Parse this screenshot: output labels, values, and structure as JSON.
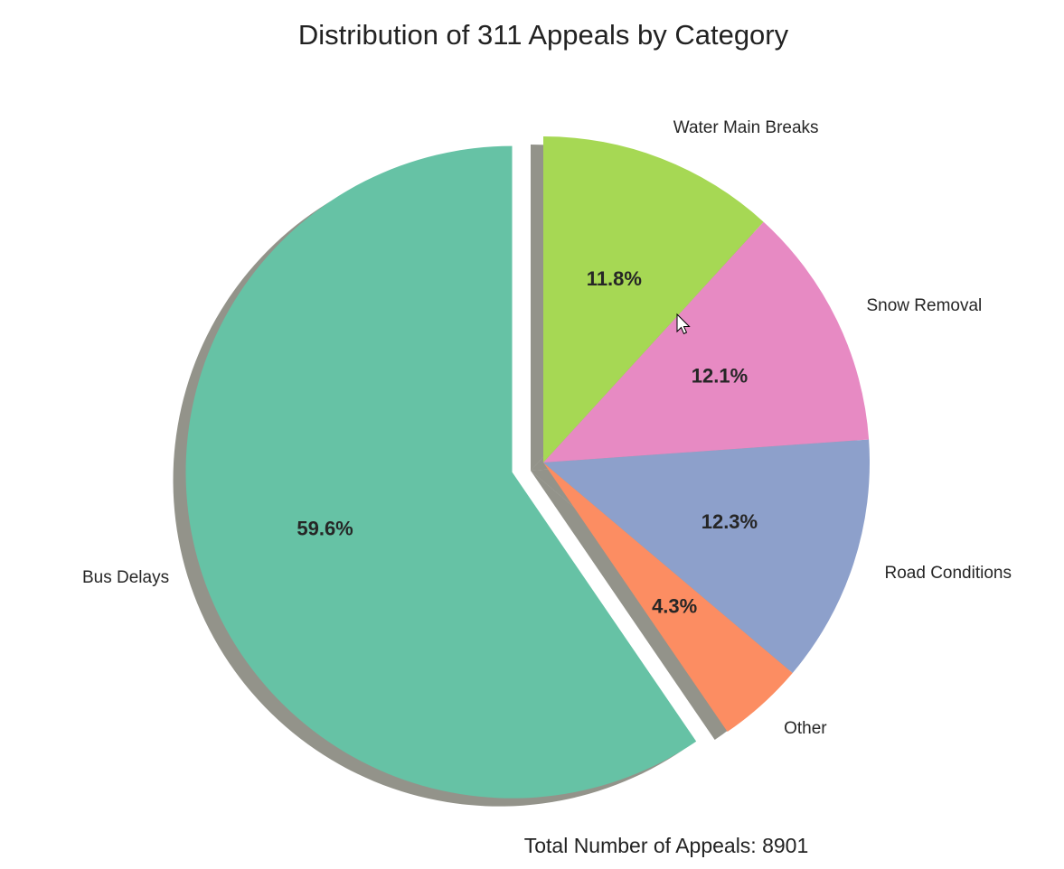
{
  "chart_data": {
    "type": "pie",
    "title": "Distribution of 311 Appeals by Category",
    "slices": [
      {
        "label": "Bus Delays",
        "value": 59.6,
        "pct_label": "59.6%",
        "color": "#66c2a5",
        "exploded": true
      },
      {
        "label": "Other",
        "value": 4.3,
        "pct_label": "4.3%",
        "color": "#fc8d62",
        "exploded": false
      },
      {
        "label": "Road Conditions",
        "value": 12.3,
        "pct_label": "12.3%",
        "color": "#8da0cb",
        "exploded": false
      },
      {
        "label": "Snow Removal",
        "value": 12.1,
        "pct_label": "12.1%",
        "color": "#e78ac3",
        "exploded": false
      },
      {
        "label": "Water Main Breaks",
        "value": 11.8,
        "pct_label": "11.8%",
        "color": "#a6d854",
        "exploded": false
      }
    ],
    "start_angle": "top (12 o'clock), counterclockwise",
    "shadow": true,
    "footer": "Total Number of Appeals: 8901"
  },
  "cursor_icon": "mouse-pointer-icon"
}
